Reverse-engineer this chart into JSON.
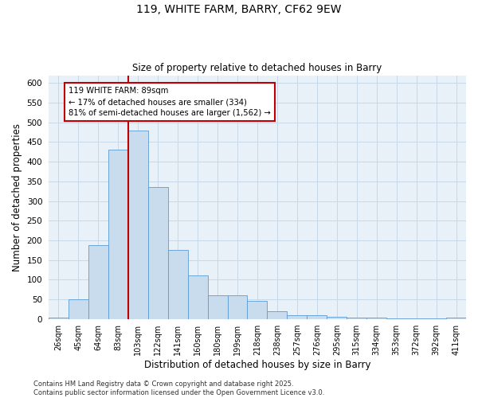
{
  "title_line1": "119, WHITE FARM, BARRY, CF62 9EW",
  "title_line2": "Size of property relative to detached houses in Barry",
  "xlabel": "Distribution of detached houses by size in Barry",
  "ylabel": "Number of detached properties",
  "categories": [
    "26sqm",
    "45sqm",
    "64sqm",
    "83sqm",
    "103sqm",
    "122sqm",
    "141sqm",
    "160sqm",
    "180sqm",
    "199sqm",
    "218sqm",
    "238sqm",
    "257sqm",
    "276sqm",
    "295sqm",
    "315sqm",
    "334sqm",
    "353sqm",
    "372sqm",
    "392sqm",
    "411sqm"
  ],
  "values": [
    3,
    50,
    187,
    430,
    480,
    335,
    175,
    110,
    60,
    60,
    45,
    20,
    10,
    10,
    6,
    4,
    3,
    2,
    1,
    2,
    3
  ],
  "bar_color": "#c9dcee",
  "bar_edge_color": "#5b9bd5",
  "grid_color": "#c8d8e8",
  "background_color": "#e8f0f8",
  "vline_color": "#c00000",
  "vline_index": 3.5,
  "annotation_line1": "119 WHITE FARM: 89sqm",
  "annotation_line2": "← 17% of detached houses are smaller (334)",
  "annotation_line3": "81% of semi-detached houses are larger (1,562) →",
  "ylim": [
    0,
    620
  ],
  "yticks": [
    0,
    50,
    100,
    150,
    200,
    250,
    300,
    350,
    400,
    450,
    500,
    550,
    600
  ],
  "footer": "Contains HM Land Registry data © Crown copyright and database right 2025.\nContains public sector information licensed under the Open Government Licence v3.0."
}
